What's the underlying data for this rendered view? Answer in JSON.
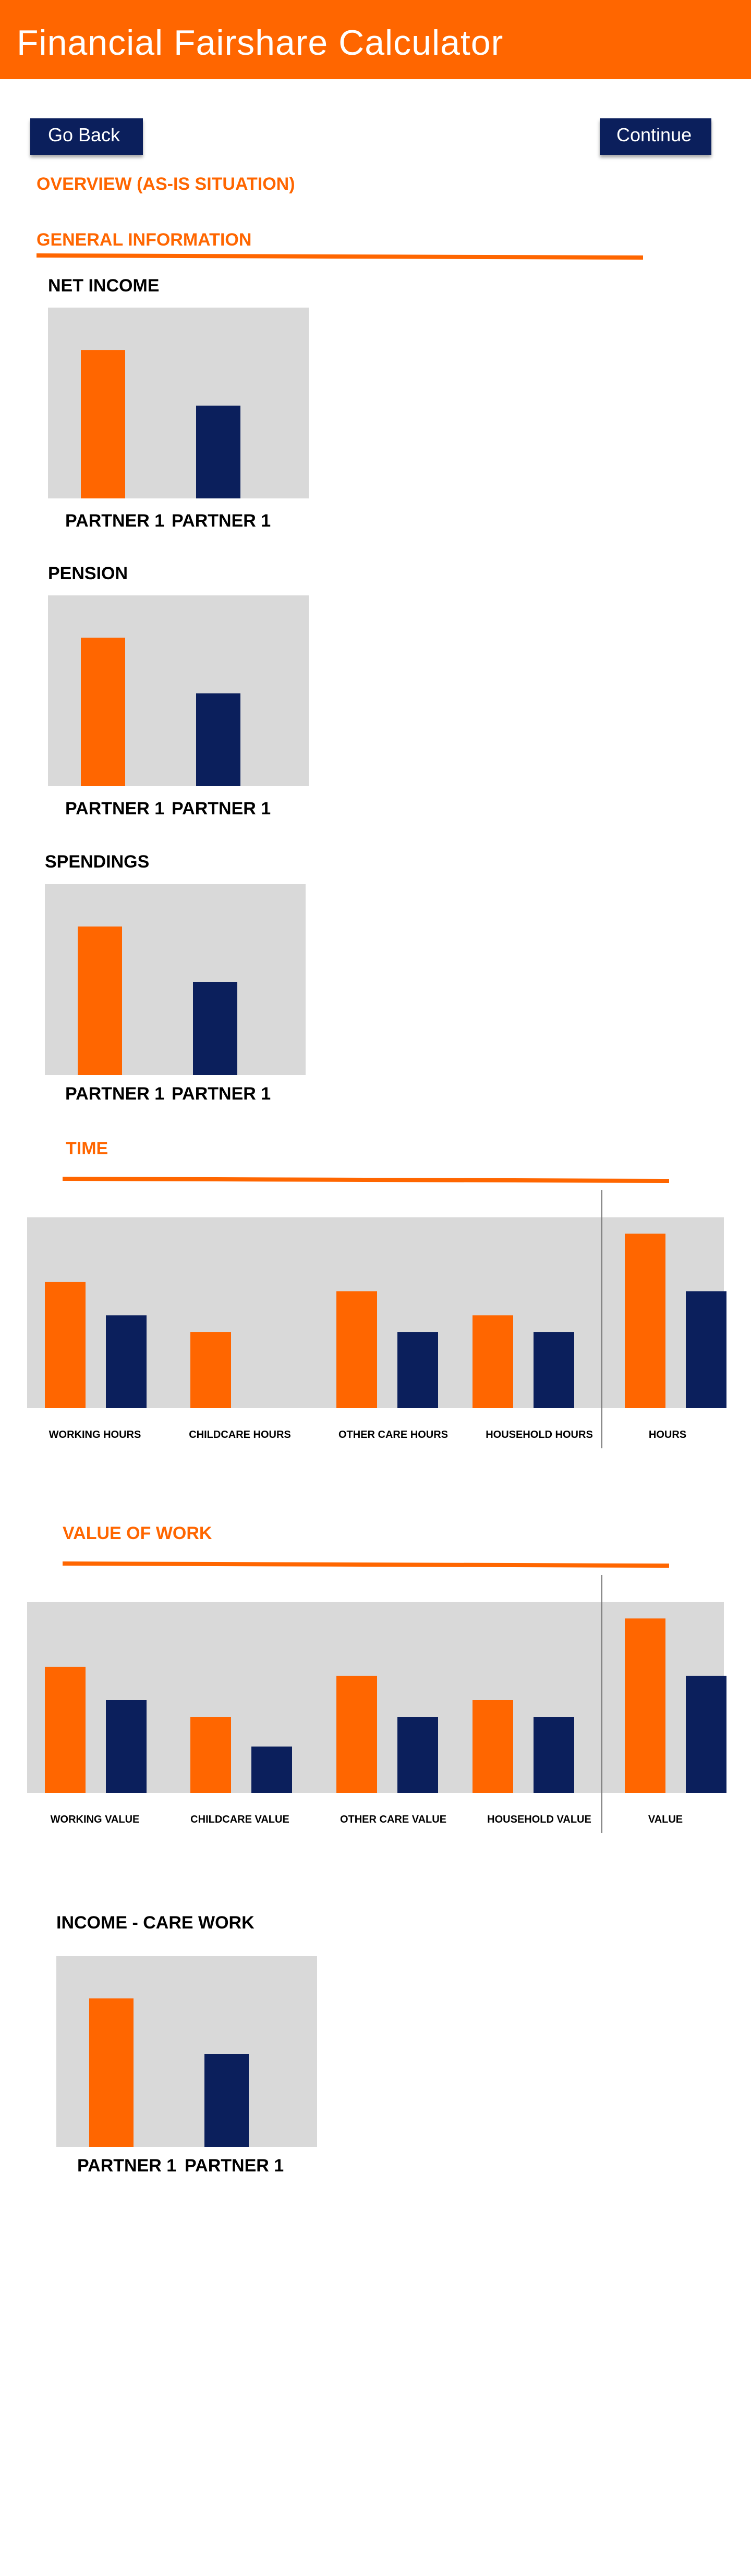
{
  "header": {
    "title": "Financial Fairshare Calculator"
  },
  "nav": {
    "back_label": "Go Back",
    "continue_label": "Continue"
  },
  "overview_heading": "OVERVIEW (AS-IS SITUATION)",
  "colors": {
    "brand": "#ff6600",
    "navy": "#0b1f5c",
    "panel": "#d9d9d9",
    "white": "#ffffff"
  },
  "general": {
    "heading": "GENERAL INFORMATION",
    "net_income": {
      "title": "NET INCOME",
      "labels": [
        "PARTNER 1",
        "PARTNER 1"
      ],
      "chart_data": {
        "type": "bar",
        "categories": [
          "PARTNER 1",
          "PARTNER 1"
        ],
        "values": [
          0.8,
          0.5
        ],
        "ylim": [
          0,
          1
        ]
      }
    },
    "pension": {
      "title": "PENSION",
      "labels": [
        "PARTNER 1",
        "PARTNER 1"
      ],
      "chart_data": {
        "type": "bar",
        "categories": [
          "PARTNER 1",
          "PARTNER 1"
        ],
        "values": [
          0.8,
          0.5
        ],
        "ylim": [
          0,
          1
        ]
      }
    },
    "spendings": {
      "title": "SPENDINGS",
      "labels": [
        "PARTNER 1",
        "PARTNER 1"
      ],
      "chart_data": {
        "type": "bar",
        "categories": [
          "PARTNER 1",
          "PARTNER 1"
        ],
        "values": [
          0.8,
          0.5
        ],
        "ylim": [
          0,
          1
        ]
      }
    }
  },
  "time": {
    "heading": "TIME",
    "categories": [
      "WORKING HOURS",
      "CHILDCARE HOURS",
      "OTHER CARE HOURS",
      "HOUSEHOLD HOURS",
      "HOURS"
    ],
    "chart_data": {
      "type": "bar",
      "categories": [
        "WORKING HOURS",
        "CHILDCARE HOURS",
        "OTHER CARE HOURS",
        "HOUSEHOLD HOURS",
        "HOURS"
      ],
      "series": [
        {
          "values": [
            0.68,
            0.41,
            0.63,
            0.5,
            0.94
          ]
        },
        {
          "values": [
            0.5,
            0,
            0.41,
            0.41,
            0.63
          ]
        }
      ],
      "ylim": [
        0,
        1
      ]
    }
  },
  "value": {
    "heading": "VALUE OF WORK",
    "categories": [
      "WORKING VALUE",
      "CHILDCARE VALUE",
      "OTHER CARE VALUE",
      "HOUSEHOLD VALUE",
      "VALUE"
    ],
    "chart_data": {
      "type": "bar",
      "categories": [
        "WORKING VALUE",
        "CHILDCARE VALUE",
        "OTHER CARE VALUE",
        "HOUSEHOLD VALUE",
        "VALUE"
      ],
      "series": [
        {
          "values": [
            0.68,
            0.41,
            0.63,
            0.5,
            0.94
          ]
        },
        {
          "values": [
            0.5,
            0.25,
            0.41,
            0.41,
            0.63
          ]
        }
      ],
      "ylim": [
        0,
        1
      ]
    }
  },
  "income_care": {
    "title": "INCOME - CARE WORK",
    "labels": [
      "PARTNER 1",
      "PARTNER 1"
    ],
    "chart_data": {
      "type": "bar",
      "categories": [
        "PARTNER 1",
        "PARTNER 1"
      ],
      "values": [
        0.8,
        0.5
      ],
      "ylim": [
        0,
        1
      ]
    }
  }
}
